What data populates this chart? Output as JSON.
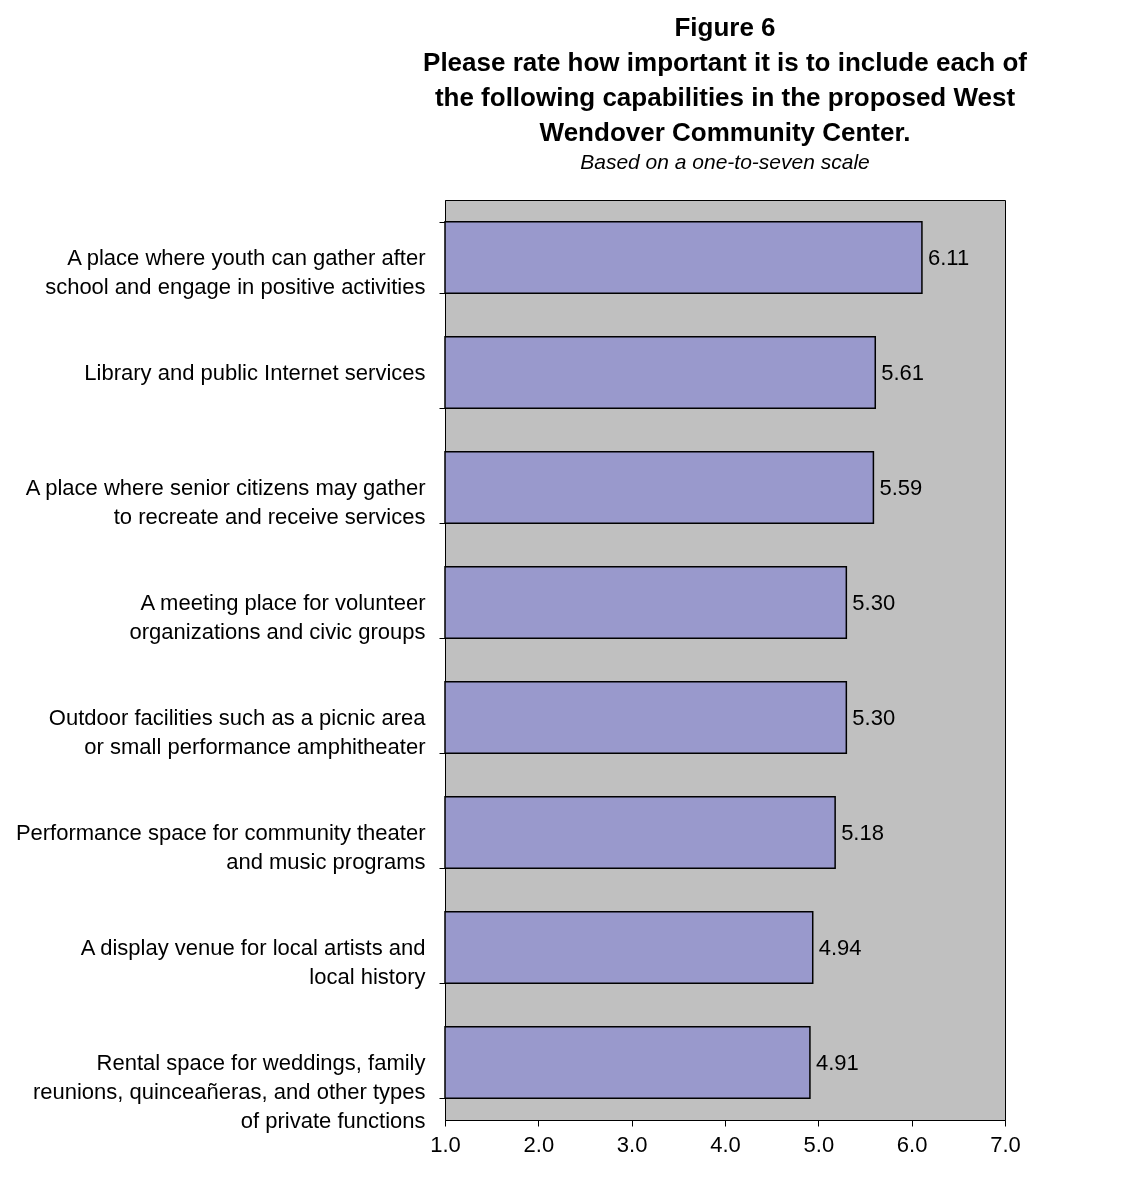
{
  "chart_data": {
    "type": "bar",
    "orientation": "horizontal",
    "title": "Figure 6\nPlease rate how important it is to include each of the following capabilities in the proposed West Wendover Community Center.",
    "subtitle": "Based on a one-to-seven scale",
    "categories": [
      "A place where youth can gather after school and engage in positive activities",
      "Library and public Internet services",
      "A place where senior citizens may gather to recreate and receive services",
      "A meeting place for volunteer organizations and civic groups",
      "Outdoor facilities such as a picnic area or small performance amphitheater",
      "Performance space for community theater and music programs",
      "A display venue for local artists and local history",
      "Rental space for weddings, family reunions, quinceañeras, and other types of private functions"
    ],
    "values": [
      6.11,
      5.61,
      5.59,
      5.3,
      5.3,
      5.18,
      4.94,
      4.91
    ],
    "value_labels": [
      "6.11",
      "5.61",
      "5.59",
      "5.30",
      "5.30",
      "5.18",
      "4.94",
      "4.91"
    ],
    "color": "#9999cc",
    "xlim": [
      1,
      7
    ],
    "xticks": [
      {
        "value": 1,
        "label": "1.0"
      },
      {
        "value": 2,
        "label": "2.0"
      },
      {
        "value": 3,
        "label": "3.0"
      },
      {
        "value": 4,
        "label": "4.0"
      },
      {
        "value": 5,
        "label": "5.0"
      },
      {
        "value": 6,
        "label": "6.0"
      },
      {
        "value": 7,
        "label": "7.0"
      }
    ],
    "grid": false
  }
}
